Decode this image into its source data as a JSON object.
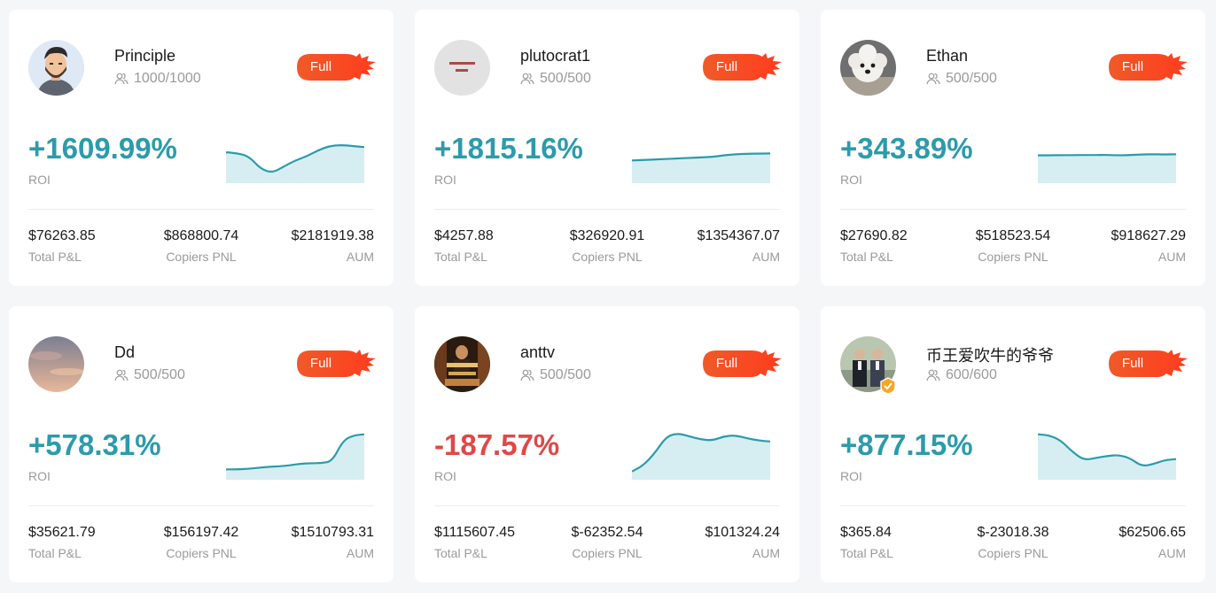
{
  "colors": {
    "positive": "#2c9bab",
    "negative": "#e04848",
    "badge": "#f05a28",
    "chart_fill": "#d6eef2",
    "chart_line": "#2c9bab"
  },
  "cards": [
    {
      "name": "Principle",
      "followers": "1000/1000",
      "badge": "Full",
      "roi": "+1609.99%",
      "roi_label": "ROI",
      "roi_sign": "positive",
      "avatar_icon": "cartoon-man-avatar",
      "verified": false,
      "sparkline": [
        30,
        29,
        26,
        14,
        10,
        16,
        22,
        26,
        32,
        36,
        37,
        36,
        35
      ],
      "total_pnl": "$76263.85",
      "total_pnl_label": "Total P&L",
      "copiers_pnl": "$868800.74",
      "copiers_pnl_label": "Copiers PNL",
      "aum": "$2181919.38",
      "aum_label": "AUM"
    },
    {
      "name": "plutocrat1",
      "followers": "500/500",
      "badge": "Full",
      "roi": "+1815.16%",
      "roi_label": "ROI",
      "roi_sign": "positive",
      "avatar_icon": "text-image-avatar",
      "verified": false,
      "sparkline": [
        22,
        22.5,
        23,
        23.5,
        24,
        24.5,
        25,
        25.5,
        27,
        28,
        28.5,
        28.7,
        28.8
      ],
      "total_pnl": "$4257.88",
      "total_pnl_label": "Total P&L",
      "copiers_pnl": "$326920.91",
      "copiers_pnl_label": "Copiers PNL",
      "aum": "$1354367.07",
      "aum_label": "AUM"
    },
    {
      "name": "Ethan",
      "followers": "500/500",
      "badge": "Full",
      "roi": "+343.89%",
      "roi_label": "ROI",
      "roi_sign": "positive",
      "avatar_icon": "white-dog-avatar",
      "verified": false,
      "sparkline": [
        27,
        27,
        27.2,
        27.2,
        27.3,
        27.3,
        27.4,
        27,
        27.2,
        27.8,
        28,
        27.8,
        28
      ],
      "total_pnl": "$27690.82",
      "total_pnl_label": "Total P&L",
      "copiers_pnl": "$518523.54",
      "copiers_pnl_label": "Copiers PNL",
      "aum": "$918627.29",
      "aum_label": "AUM"
    },
    {
      "name": "Dd",
      "followers": "500/500",
      "badge": "Full",
      "roi": "+578.31%",
      "roi_label": "ROI",
      "roi_sign": "positive",
      "avatar_icon": "sunset-sky-avatar",
      "verified": false,
      "sparkline": [
        10,
        10,
        10.5,
        11.5,
        12.5,
        13,
        14,
        15.5,
        16,
        16,
        18,
        38,
        43,
        44
      ],
      "total_pnl": "$35621.79",
      "total_pnl_label": "Total P&L",
      "copiers_pnl": "$156197.42",
      "copiers_pnl_label": "Copiers PNL",
      "aum": "$1510793.31",
      "aum_label": "AUM"
    },
    {
      "name": "anttv",
      "followers": "500/500",
      "badge": "Full",
      "roi": "-187.57%",
      "roi_label": "ROI",
      "roi_sign": "negative",
      "avatar_icon": "movie-poster-avatar",
      "verified": false,
      "sparkline": [
        8,
        14,
        26,
        42,
        45,
        42,
        39,
        38,
        42,
        43,
        40,
        38,
        37
      ],
      "total_pnl": "$1115607.45",
      "total_pnl_label": "Total P&L",
      "copiers_pnl": "$-62352.54",
      "copiers_pnl_label": "Copiers PNL",
      "aum": "$101324.24",
      "aum_label": "AUM"
    },
    {
      "name": "币王爱吹牛的爷爷",
      "followers": "600/600",
      "badge": "Full",
      "roi": "+877.15%",
      "roi_label": "ROI",
      "roi_sign": "positive",
      "avatar_icon": "two-men-photo-avatar",
      "verified": true,
      "sparkline": [
        44,
        43,
        38,
        27,
        19,
        21,
        23,
        24,
        21,
        13,
        15,
        19,
        20
      ],
      "total_pnl": "$365.84",
      "total_pnl_label": "Total P&L",
      "copiers_pnl": "$-23018.38",
      "copiers_pnl_label": "Copiers PNL",
      "aum": "$62506.65",
      "aum_label": "AUM"
    }
  ]
}
